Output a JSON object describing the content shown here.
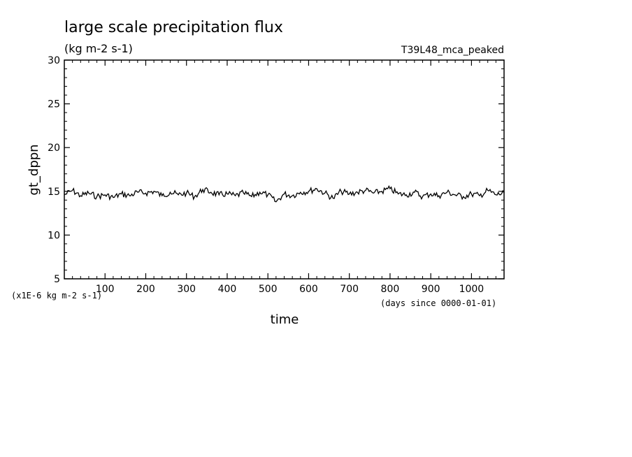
{
  "chart_data": {
    "type": "line",
    "title": "large scale precipitation flux",
    "subtitle": "(kg m-2 s-1)",
    "run_label": "T39L48_mca_peaked",
    "ylabel": "gt_dppn",
    "xlabel": "time",
    "x_unit_note": "(days since 0000-01-01)",
    "y_unit_note": "(x1E-6 kg m-2 s-1)",
    "xlim": [
      0,
      1080
    ],
    "ylim": [
      5,
      30
    ],
    "x_ticks": [
      100,
      200,
      300,
      400,
      500,
      600,
      700,
      800,
      900,
      1000
    ],
    "y_ticks": [
      5,
      10,
      15,
      20,
      25,
      30
    ],
    "line_color": "#000000",
    "series": [
      {
        "x": [
          0,
          20,
          40,
          60,
          80,
          100,
          120,
          140,
          160,
          180,
          200,
          220,
          240,
          260,
          280,
          300,
          320,
          340,
          360,
          380,
          400,
          420,
          440,
          460,
          480,
          500,
          520,
          540,
          560,
          580,
          600,
          620,
          640,
          660,
          680,
          700,
          720,
          740,
          760,
          780,
          800,
          820,
          840,
          860,
          880,
          900,
          920,
          940,
          960,
          980,
          1000,
          1020,
          1040,
          1060,
          1080
        ],
        "values": [
          14.6,
          15.1,
          14.5,
          14.8,
          14.4,
          14.6,
          14.3,
          14.7,
          14.5,
          14.9,
          14.8,
          15.0,
          14.5,
          14.9,
          14.6,
          14.8,
          14.4,
          15.2,
          14.9,
          14.6,
          14.7,
          14.5,
          14.8,
          14.4,
          14.9,
          14.6,
          13.8,
          14.7,
          14.5,
          14.9,
          15.0,
          15.3,
          14.8,
          14.2,
          15.0,
          14.7,
          14.9,
          15.1,
          14.8,
          15.0,
          15.3,
          14.7,
          14.6,
          14.9,
          14.4,
          14.7,
          14.5,
          14.9,
          14.6,
          14.4,
          14.7,
          14.5,
          15.1,
          14.6,
          14.8
        ]
      }
    ]
  }
}
